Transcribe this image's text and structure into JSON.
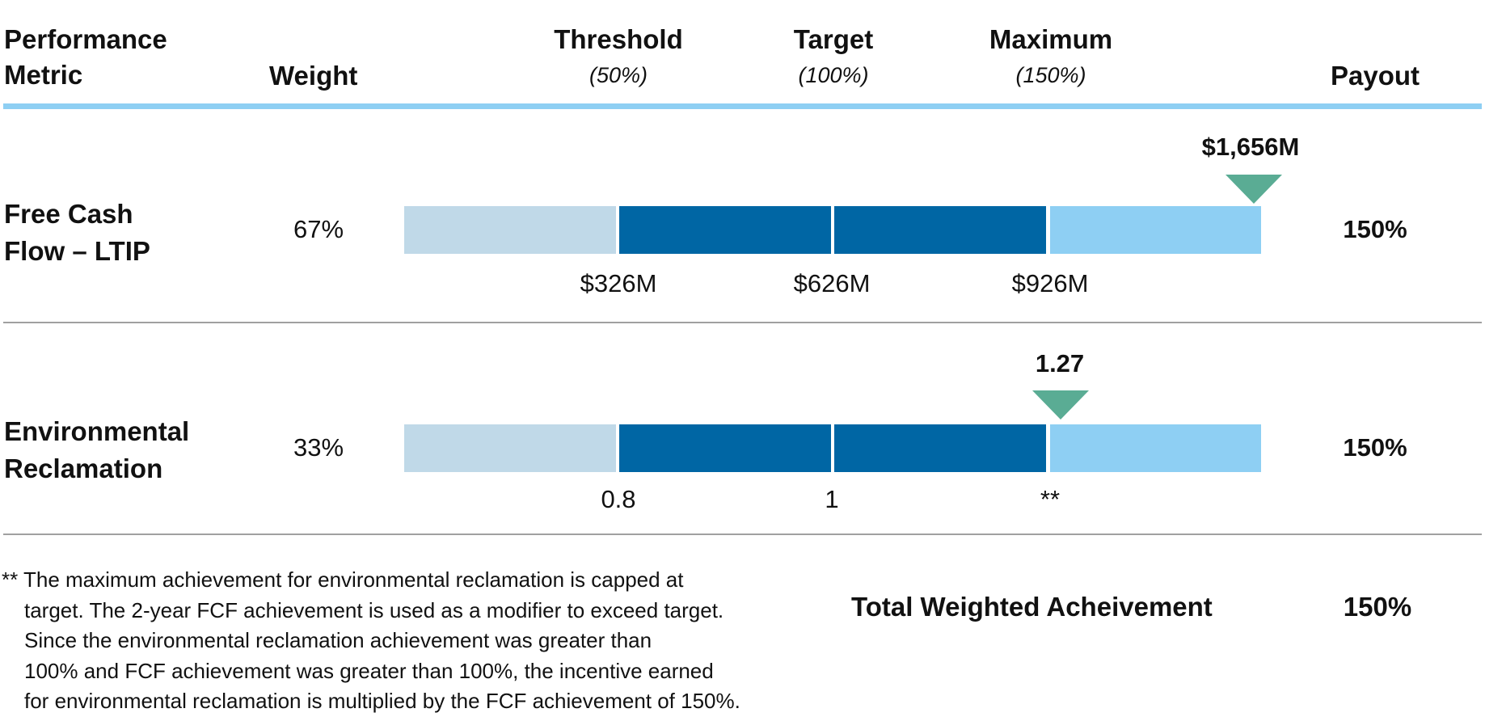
{
  "header": {
    "metric_line1": "Performance",
    "metric_line2": "Metric",
    "weight": "Weight",
    "threshold": "Threshold",
    "threshold_pct": "(50%)",
    "target": "Target",
    "target_pct": "(100%)",
    "maximum": "Maximum",
    "maximum_pct": "(150%)",
    "payout": "Payout"
  },
  "colors": {
    "below_threshold": "#c0d9e8",
    "threshold_to_max": "#0066a4",
    "above_max": "#8ecff3",
    "marker": "#5aac94",
    "header_rule": "#8ecff3",
    "divider": "#a0a0a0"
  },
  "rows": [
    {
      "metric_line1": "Free Cash",
      "metric_line2": "Flow – LTIP",
      "weight": "67%",
      "actual": "$1,656M",
      "threshold": "$326M",
      "target": "$626M",
      "maximum": "$926M",
      "payout": "150%"
    },
    {
      "metric_line1": "Environmental",
      "metric_line2": "Reclamation",
      "weight": "33%",
      "actual": "1.27",
      "threshold": "0.8",
      "target": "1",
      "maximum": "**",
      "payout": "150%"
    }
  ],
  "footnote": [
    "** The maximum achievement for environmental reclamation is capped at",
    "target. The 2-year FCF achievement is used as a modifier to exceed target.",
    "Since the environmental reclamation achievement was greater than",
    "100% and FCF achievement was greater than 100%, the incentive earned",
    "for environmental reclamation is multiplied by the FCF achievement of 150%."
  ],
  "total": {
    "label": "Total Weighted Acheivement",
    "value": "150%"
  }
}
